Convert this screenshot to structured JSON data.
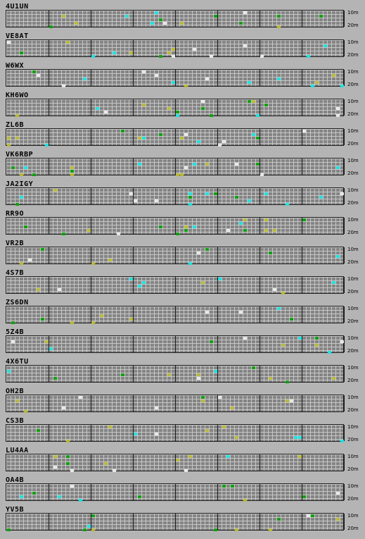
{
  "band_labels": {
    "top": "10m",
    "bottom": "20m"
  },
  "stations": [
    {
      "call": "4U1UN"
    },
    {
      "call": "VE8AT"
    },
    {
      "call": "W6WX"
    },
    {
      "call": "KH6WO"
    },
    {
      "call": "ZL6B"
    },
    {
      "call": "VK6RBP"
    },
    {
      "call": "JA2IGY"
    },
    {
      "call": "RR9O"
    },
    {
      "call": "VR2B"
    },
    {
      "call": "4S7B"
    },
    {
      "call": "ZS6DN"
    },
    {
      "call": "5Z4B"
    },
    {
      "call": "4X6TU"
    },
    {
      "call": "OH2B"
    },
    {
      "call": "CS3B"
    },
    {
      "call": "LU4AA"
    },
    {
      "call": "OA4B"
    },
    {
      "call": "YV5B"
    }
  ],
  "colors": {
    "background": "#b4b4b4",
    "grid_cell": "#848484",
    "grid_line": "#d0d0d0",
    "separator": "#1c1c1c",
    "signal_cyan": "#20e0e0",
    "signal_green": "#10a010",
    "signal_olive": "#b8b838",
    "signal_white": "#e8e8e8"
  }
}
